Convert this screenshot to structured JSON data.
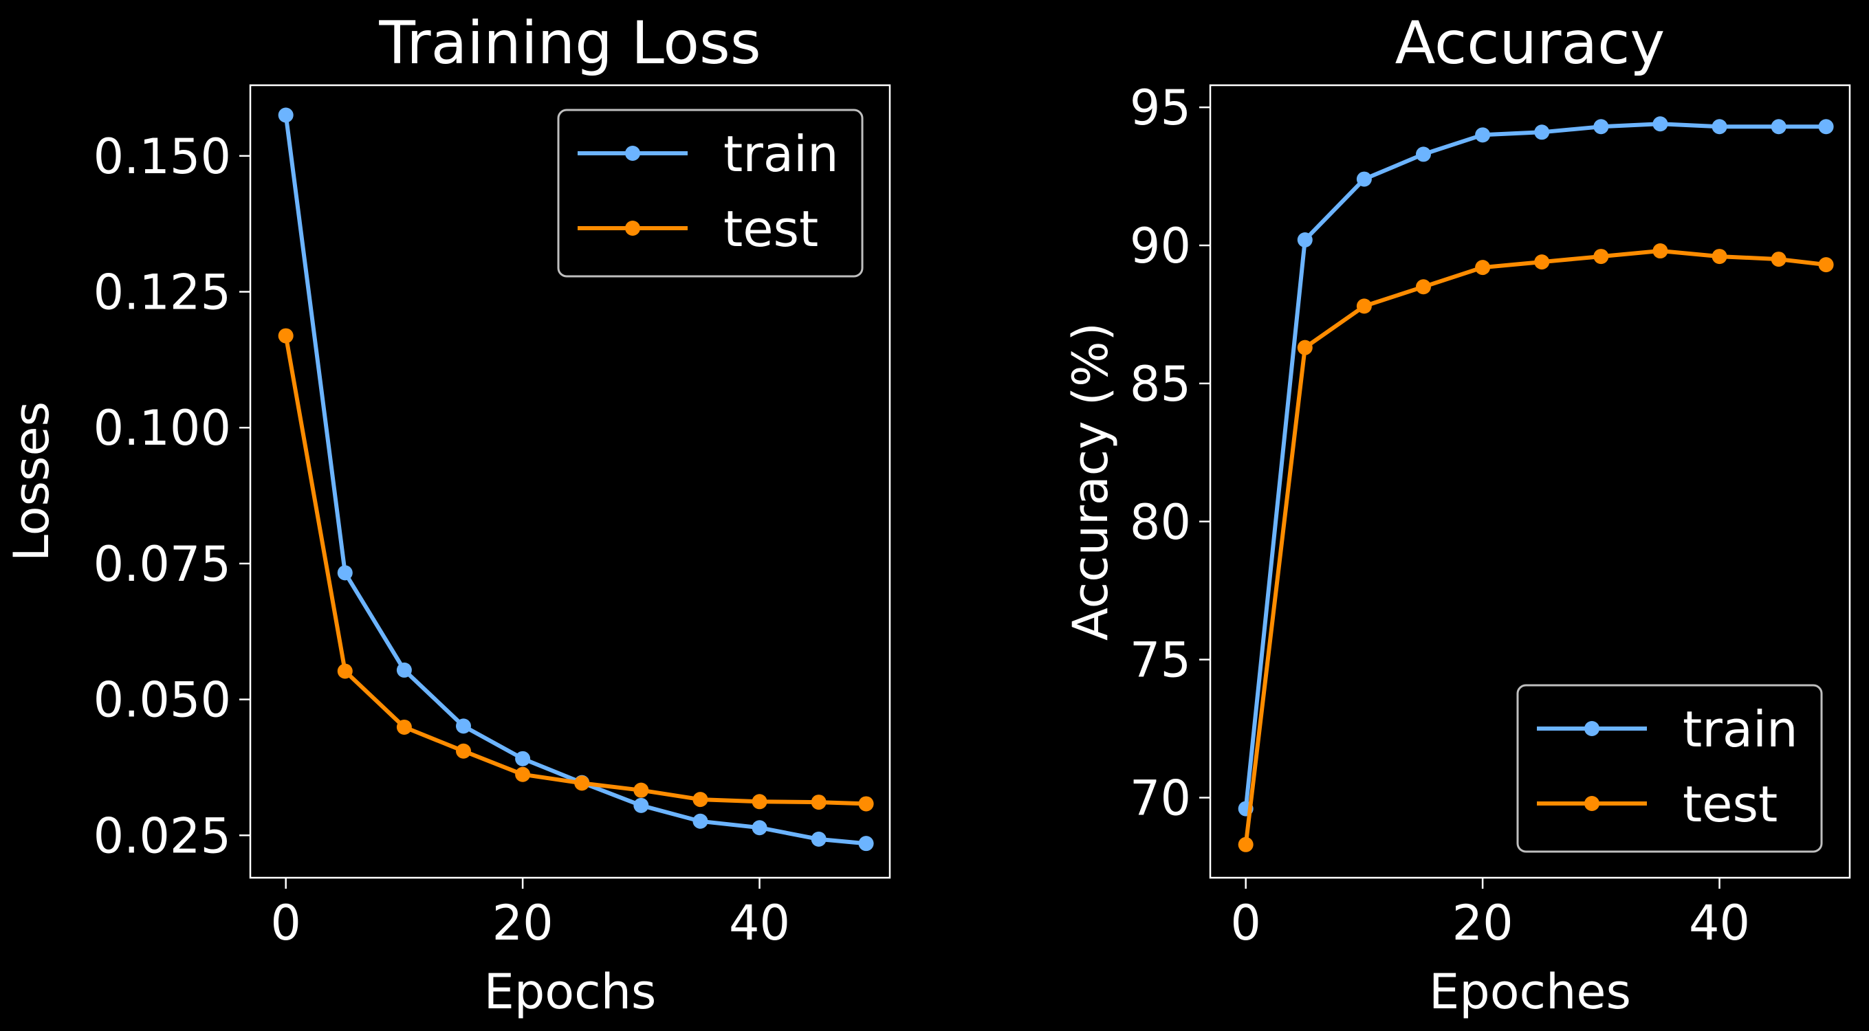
{
  "theme": {
    "background": "#000000",
    "foreground": "#ffffff",
    "legend_border": "#bfbfbf"
  },
  "chart_data": [
    {
      "type": "line",
      "title": "Training Loss",
      "xlabel": "Epochs",
      "ylabel": "Losses",
      "xlim": [
        -3,
        51
      ],
      "ylim": [
        0.0172,
        0.163
      ],
      "xticks": [
        0,
        20,
        40
      ],
      "yticks": [
        0.025,
        0.05,
        0.075,
        0.1,
        0.125,
        0.15
      ],
      "ytick_labels": [
        "0.025",
        "0.050",
        "0.075",
        "0.100",
        "0.125",
        "0.150"
      ],
      "grid": false,
      "legend": "top-right",
      "x": [
        0,
        5,
        10,
        15,
        20,
        25,
        30,
        35,
        40,
        45,
        49
      ],
      "series": [
        {
          "name": "train",
          "color": "#6cb4ff",
          "values": [
            0.1575,
            0.0733,
            0.0554,
            0.0451,
            0.0391,
            0.0347,
            0.0305,
            0.0276,
            0.0264,
            0.0243,
            0.0235
          ]
        },
        {
          "name": "test",
          "color": "#ff8c00",
          "values": [
            0.1169,
            0.0552,
            0.0449,
            0.0405,
            0.0362,
            0.0346,
            0.0333,
            0.0316,
            0.0312,
            0.0311,
            0.0308
          ]
        }
      ]
    },
    {
      "type": "line",
      "title": "Accuracy",
      "xlabel": "Epoches",
      "ylabel": "Accuracy (%)",
      "xlim": [
        -3,
        51
      ],
      "ylim": [
        67.1,
        95.8
      ],
      "xticks": [
        0,
        20,
        40
      ],
      "yticks": [
        70,
        75,
        80,
        85,
        90,
        95
      ],
      "ytick_labels": [
        "70",
        "75",
        "80",
        "85",
        "90",
        "95"
      ],
      "grid": false,
      "legend": "bottom-right",
      "x": [
        0,
        5,
        10,
        15,
        20,
        25,
        30,
        35,
        40,
        45,
        49
      ],
      "series": [
        {
          "name": "train",
          "color": "#6cb4ff",
          "values": [
            69.6,
            90.2,
            92.4,
            93.3,
            94.0,
            94.1,
            94.3,
            94.4,
            94.3,
            94.3,
            94.3
          ]
        },
        {
          "name": "test",
          "color": "#ff8c00",
          "values": [
            68.3,
            86.3,
            87.8,
            88.5,
            89.2,
            89.4,
            89.6,
            89.8,
            89.6,
            89.5,
            89.3
          ]
        }
      ]
    }
  ]
}
